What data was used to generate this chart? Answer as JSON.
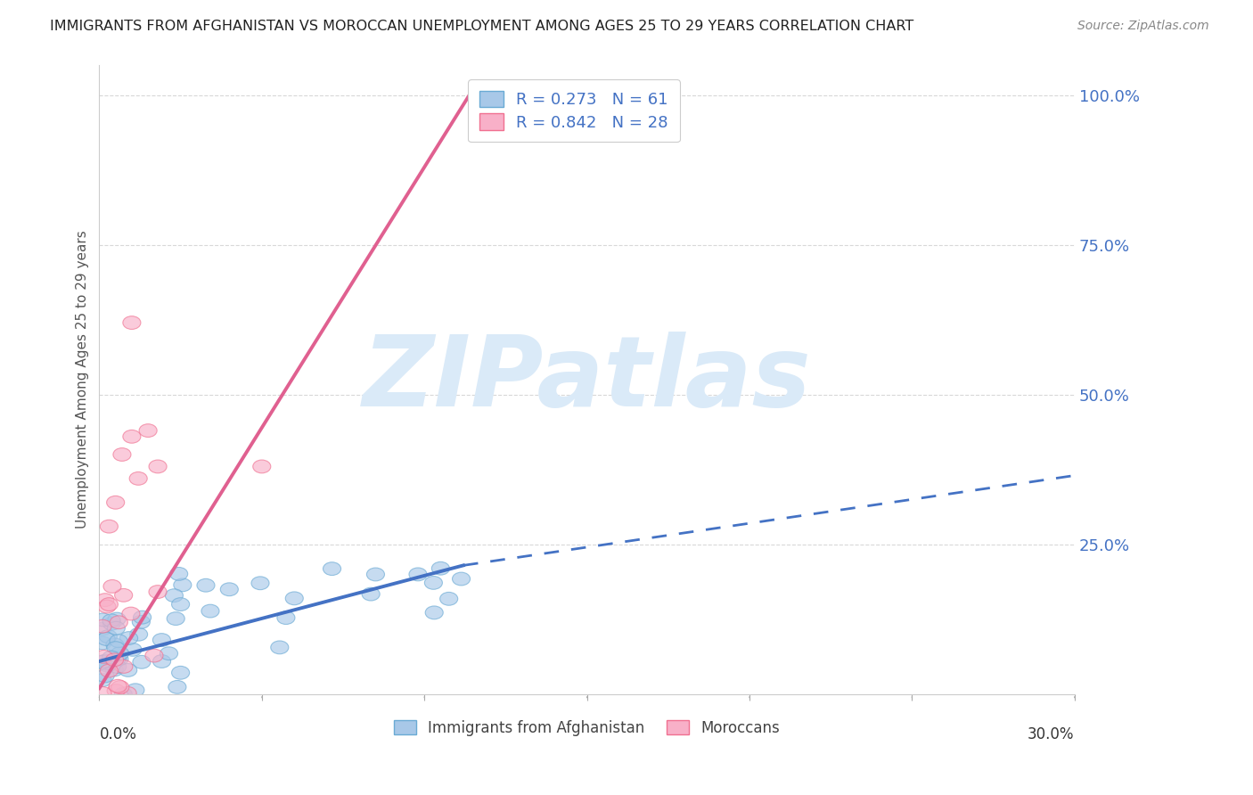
{
  "title": "IMMIGRANTS FROM AFGHANISTAN VS MOROCCAN UNEMPLOYMENT AMONG AGES 25 TO 29 YEARS CORRELATION CHART",
  "source": "Source: ZipAtlas.com",
  "ylabel": "Unemployment Among Ages 25 to 29 years",
  "xlim": [
    0.0,
    0.3
  ],
  "ylim": [
    0.0,
    1.05
  ],
  "x_ticks": [
    0.0,
    0.05,
    0.1,
    0.15,
    0.2,
    0.25,
    0.3
  ],
  "y_ticks_right": [
    0.25,
    0.5,
    0.75,
    1.0
  ],
  "y_tick_labels_right": [
    "25.0%",
    "50.0%",
    "75.0%",
    "100.0%"
  ],
  "afg_r": "0.273",
  "afg_n": "61",
  "mor_r": "0.842",
  "mor_n": "28",
  "legend_label_afg": "Immigrants from Afghanistan",
  "legend_label_mor": "Moroccans",
  "scatter_color_afghanistan_face": "#a8c8e8",
  "scatter_color_afghanistan_edge": "#6aaad4",
  "scatter_color_moroccan_face": "#f8b0c8",
  "scatter_color_moroccan_edge": "#f07090",
  "trend_color_afghanistan": "#4472c4",
  "trend_color_moroccan": "#e06090",
  "watermark": "ZIPatlas",
  "watermark_color": "#daeaf8",
  "background_color": "#ffffff",
  "grid_color": "#d8d8d8",
  "right_axis_color": "#4472c4",
  "title_color": "#222222",
  "source_color": "#888888",
  "ylabel_color": "#555555"
}
